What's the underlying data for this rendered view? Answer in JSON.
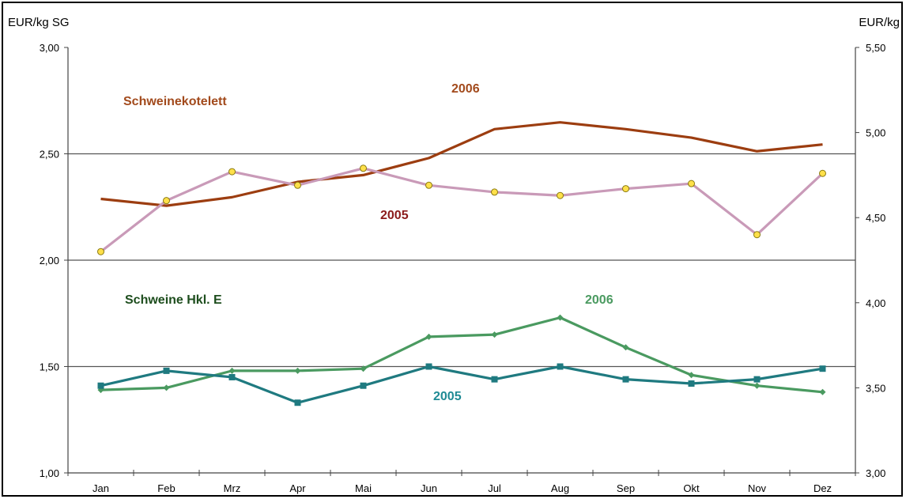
{
  "chart_data": {
    "type": "line",
    "categories": [
      "Jan",
      "Feb",
      "Mrz",
      "Apr",
      "Mai",
      "Jun",
      "Jul",
      "Aug",
      "Sep",
      "Okt",
      "Nov",
      "Dez"
    ],
    "left_axis": {
      "title": "EUR/kg SG",
      "ylim": [
        1.0,
        3.0
      ],
      "ticks": [
        "1,00",
        "1,50",
        "2,00",
        "2,50",
        "3,00"
      ],
      "tick_values": [
        1.0,
        1.5,
        2.0,
        2.5,
        3.0
      ]
    },
    "right_axis": {
      "title": "EUR/kg",
      "ylim": [
        3.0,
        5.5
      ],
      "ticks": [
        "3,00",
        "3,50",
        "4,00",
        "4,50",
        "5,00",
        "5,50"
      ],
      "tick_values": [
        3.0,
        3.5,
        4.0,
        4.5,
        5.0,
        5.5
      ]
    },
    "grid": "horizontal at 1,50 / 2,00 / 2,50",
    "series": [
      {
        "group": "Schweinekotelett",
        "year": "2006",
        "axis": "right",
        "color": "#9c3d10",
        "marker": "none",
        "values": [
          4.61,
          4.57,
          4.62,
          4.71,
          4.75,
          4.85,
          5.02,
          5.06,
          5.02,
          4.97,
          4.89,
          4.93
        ]
      },
      {
        "group": "Schweinekotelett",
        "year": "2005",
        "axis": "right",
        "color": "#c99ab8",
        "marker": "circle",
        "values": [
          4.3,
          4.6,
          4.77,
          4.69,
          4.79,
          4.69,
          4.65,
          4.63,
          4.67,
          4.7,
          4.4,
          4.76
        ]
      },
      {
        "group": "Schweine Hkl. E",
        "year": "2006",
        "axis": "left",
        "color": "#4a9a60",
        "marker": "diamond",
        "values": [
          1.39,
          1.4,
          1.48,
          1.48,
          1.49,
          1.64,
          1.65,
          1.73,
          1.59,
          1.46,
          1.41,
          1.38
        ]
      },
      {
        "group": "Schweine Hkl. E",
        "year": "2005",
        "axis": "left",
        "color": "#1f7a80",
        "marker": "square",
        "values": [
          1.41,
          1.48,
          1.45,
          1.33,
          1.41,
          1.5,
          1.44,
          1.5,
          1.44,
          1.42,
          1.44,
          1.49
        ]
      }
    ],
    "annotations": [
      {
        "text": "Schweinekotelett",
        "color": "#a24a1c"
      },
      {
        "text": "2006",
        "color": "#a24a1c"
      },
      {
        "text": "2005",
        "color": "#8b1a1a"
      },
      {
        "text": "Schweine Hkl. E",
        "color": "#1d4d1d"
      },
      {
        "text": "2006",
        "color": "#4a9a60"
      },
      {
        "text": "2005",
        "color": "#1f8a94"
      }
    ]
  }
}
